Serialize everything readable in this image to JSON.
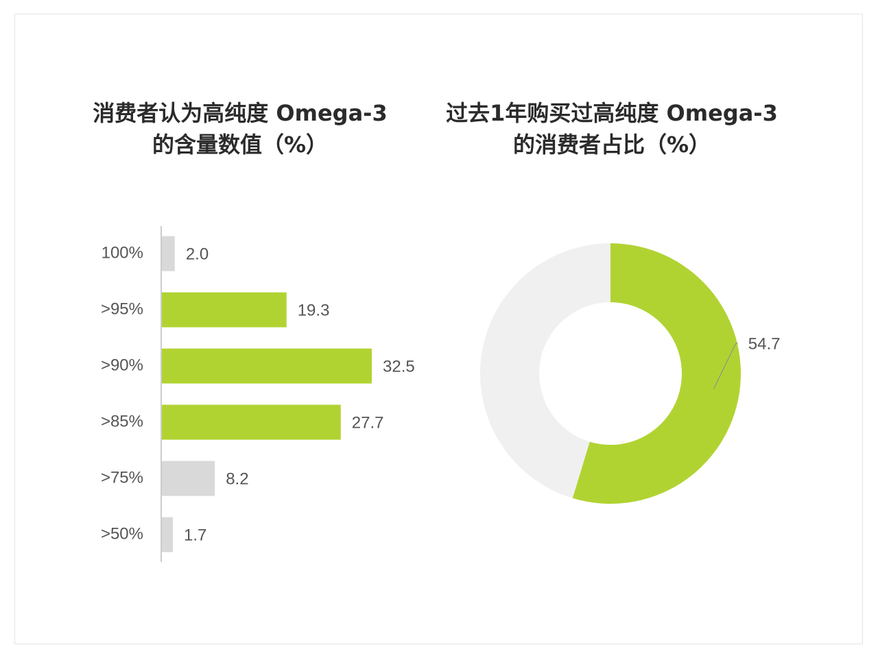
{
  "colors": {
    "highlight": "#b1d332",
    "muted": "#d9d9d9",
    "donut_rest": "#f0f0f0",
    "text": "#555555",
    "axis": "#999999"
  },
  "chart_data": [
    {
      "type": "bar",
      "orientation": "horizontal",
      "title_lines": [
        "消费者认为高纯度 Omega-3",
        "的含量数值（%）"
      ],
      "categories": [
        "100%",
        ">95%",
        ">90%",
        ">85%",
        ">75%",
        ">50%"
      ],
      "values": [
        2.0,
        19.3,
        32.5,
        27.7,
        8.2,
        1.7
      ],
      "value_labels": [
        "2.0",
        "19.3",
        "32.5",
        "27.7",
        "8.2",
        "1.7"
      ],
      "highlighted": [
        false,
        true,
        true,
        true,
        false,
        false
      ],
      "xlim": [
        0,
        40
      ]
    },
    {
      "type": "pie",
      "style": "donut",
      "title_lines": [
        "过去1年购买过高纯度 Omega-3",
        "的消费者占比（%）"
      ],
      "values": [
        54.7,
        45.3
      ],
      "labels": [
        "54.7",
        ""
      ]
    }
  ]
}
